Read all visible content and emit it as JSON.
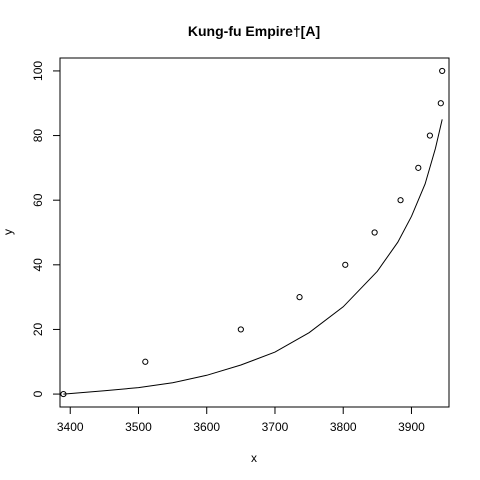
{
  "chart_data": {
    "type": "scatter",
    "title": "Kung-fu Empire†[A]",
    "xlabel": "x",
    "ylabel": "y",
    "xlim": [
      3385,
      3955
    ],
    "ylim": [
      -4,
      104
    ],
    "x_ticks": [
      3400,
      3500,
      3600,
      3700,
      3800,
      3900
    ],
    "y_ticks": [
      0,
      20,
      40,
      60,
      80,
      100
    ],
    "x_tick_labels": [
      "3400",
      "3500",
      "3600",
      "3700",
      "3800",
      "3900"
    ],
    "y_tick_labels": [
      "0",
      "20",
      "40",
      "60",
      "80",
      "100"
    ],
    "grid": false,
    "series": [
      {
        "type": "scatter",
        "marker": "open-circle",
        "points": [
          {
            "x": 3390,
            "y": 0
          },
          {
            "x": 3510,
            "y": 10
          },
          {
            "x": 3650,
            "y": 20
          },
          {
            "x": 3736,
            "y": 30
          },
          {
            "x": 3803,
            "y": 40
          },
          {
            "x": 3846,
            "y": 50
          },
          {
            "x": 3884,
            "y": 60
          },
          {
            "x": 3910,
            "y": 70
          },
          {
            "x": 3927,
            "y": 80
          },
          {
            "x": 3943,
            "y": 90
          },
          {
            "x": 3945,
            "y": 100
          }
        ]
      },
      {
        "type": "line",
        "points": [
          {
            "x": 3390,
            "y": 0
          },
          {
            "x": 3450,
            "y": 1
          },
          {
            "x": 3500,
            "y": 2
          },
          {
            "x": 3550,
            "y": 3.5
          },
          {
            "x": 3600,
            "y": 5.8
          },
          {
            "x": 3650,
            "y": 9
          },
          {
            "x": 3700,
            "y": 13
          },
          {
            "x": 3750,
            "y": 19
          },
          {
            "x": 3800,
            "y": 27
          },
          {
            "x": 3850,
            "y": 38
          },
          {
            "x": 3880,
            "y": 47
          },
          {
            "x": 3900,
            "y": 55
          },
          {
            "x": 3920,
            "y": 65
          },
          {
            "x": 3935,
            "y": 76
          },
          {
            "x": 3945,
            "y": 85
          }
        ]
      }
    ]
  }
}
